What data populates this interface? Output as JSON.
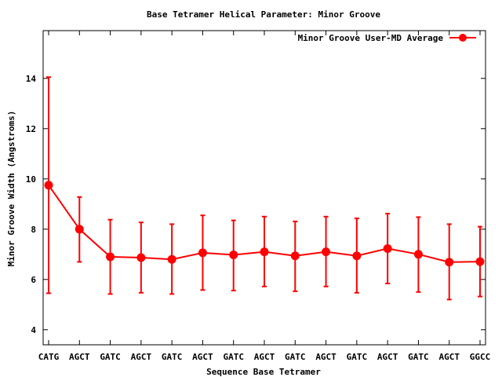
{
  "chart_data": {
    "type": "line",
    "title": "Base Tetramer Helical Parameter: Minor Groove",
    "xlabel": "Sequence Base Tetramer",
    "ylabel": "Minor Groove Width (Angstroms)",
    "ylim": [
      3.4,
      15.9
    ],
    "yticks": [
      4,
      6,
      8,
      10,
      12,
      14
    ],
    "grid": false,
    "legend_position": "top-right",
    "categories": [
      "CATG",
      "AGCT",
      "GATC",
      "AGCT",
      "GATC",
      "AGCT",
      "GATC",
      "AGCT",
      "GATC",
      "AGCT",
      "GATC",
      "AGCT",
      "GATC",
      "AGCT",
      "GGCC"
    ],
    "series": [
      {
        "name": "Minor Groove User-MD Average",
        "color": "#ff0000",
        "marker": "circle",
        "values": [
          9.75,
          8.0,
          6.9,
          6.87,
          6.8,
          7.06,
          6.98,
          7.1,
          6.94,
          7.1,
          6.94,
          7.23,
          7.0,
          6.69,
          6.71
        ],
        "error_low": [
          5.45,
          6.7,
          5.42,
          5.47,
          5.42,
          5.58,
          5.56,
          5.72,
          5.53,
          5.72,
          5.47,
          5.84,
          5.5,
          5.2,
          5.32
        ],
        "error_high": [
          14.05,
          9.28,
          8.38,
          8.27,
          8.2,
          8.55,
          8.35,
          8.5,
          8.31,
          8.5,
          8.43,
          8.62,
          8.48,
          8.2,
          8.1
        ]
      }
    ]
  }
}
